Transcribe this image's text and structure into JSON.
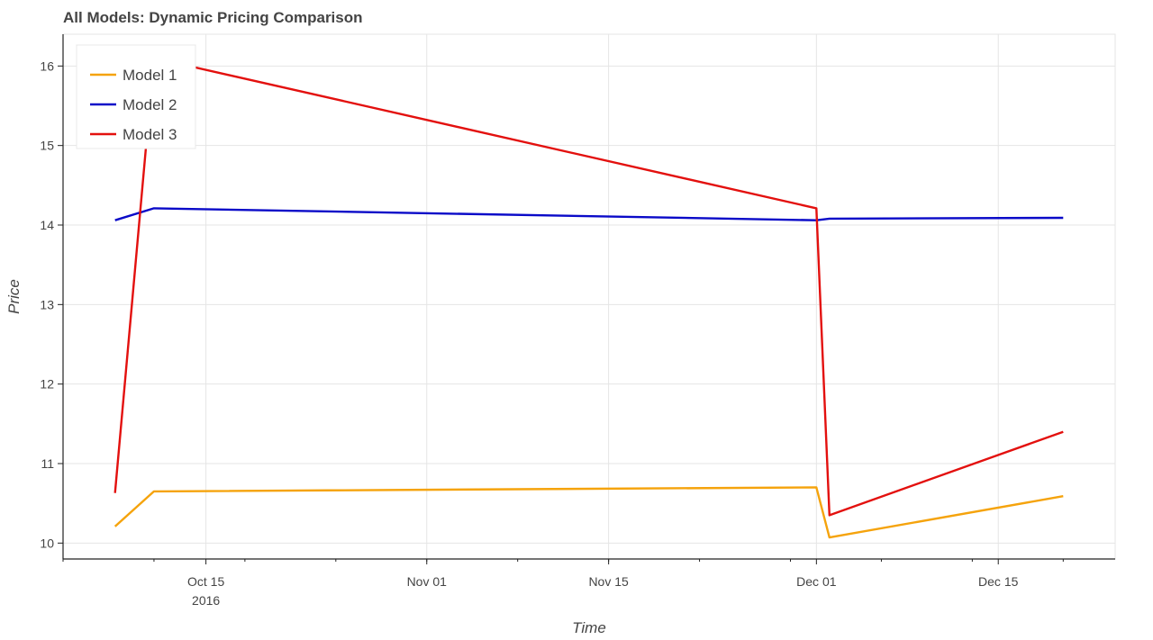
{
  "chart_data": {
    "type": "line",
    "title": "All Models: Dynamic Pricing Comparison",
    "xlabel": "Time",
    "ylabel": "Price",
    "x_axis_type": "datetime",
    "xlim": [
      "2016-10-04",
      "2016-12-24"
    ],
    "ylim": [
      9.8,
      16.4
    ],
    "y_ticks": [
      10,
      11,
      12,
      13,
      14,
      15,
      16
    ],
    "x_ticks": [
      {
        "date": "2016-10-15",
        "label": "Oct 15",
        "sublabel": "2016"
      },
      {
        "date": "2016-11-01",
        "label": "Nov 01",
        "sublabel": ""
      },
      {
        "date": "2016-11-15",
        "label": "Nov 15",
        "sublabel": ""
      },
      {
        "date": "2016-12-01",
        "label": "Dec 01",
        "sublabel": ""
      },
      {
        "date": "2016-12-15",
        "label": "Dec 15",
        "sublabel": ""
      }
    ],
    "grid": true,
    "legend_position": "top-left",
    "series": [
      {
        "name": "Model 1",
        "color": "#f5a30c",
        "points": [
          [
            "2016-10-08",
            10.21
          ],
          [
            "2016-10-11",
            10.65
          ],
          [
            "2016-12-01",
            10.7
          ],
          [
            "2016-12-02",
            10.07
          ],
          [
            "2016-12-20",
            10.59
          ]
        ]
      },
      {
        "name": "Model 2",
        "color": "#0a0ac8",
        "points": [
          [
            "2016-10-08",
            14.06
          ],
          [
            "2016-10-11",
            14.21
          ],
          [
            "2016-12-01",
            14.06
          ],
          [
            "2016-12-02",
            14.08
          ],
          [
            "2016-12-20",
            14.09
          ]
        ]
      },
      {
        "name": "Model 3",
        "color": "#e3100e",
        "points": [
          [
            "2016-10-08",
            10.63
          ],
          [
            "2016-10-11",
            16.1
          ],
          [
            "2016-12-01",
            14.21
          ],
          [
            "2016-12-02",
            10.35
          ],
          [
            "2016-12-20",
            11.4
          ]
        ]
      }
    ]
  }
}
